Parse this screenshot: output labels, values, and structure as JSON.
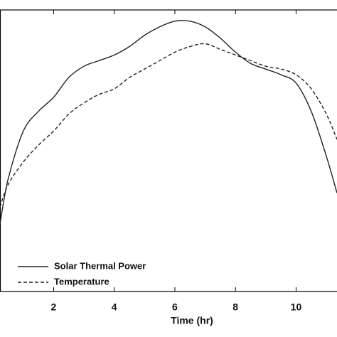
{
  "chart_data": {
    "type": "line",
    "xlabel": "Time (hr)",
    "x": [
      0.23,
      0.5,
      1,
      1.5,
      2,
      2.5,
      3,
      3.5,
      4,
      4.5,
      5,
      5.5,
      6,
      6.5,
      7,
      7.5,
      8,
      8.5,
      9,
      9.5,
      10,
      10.5,
      11,
      11.35
    ],
    "series": [
      {
        "name": "Solar Thermal Power",
        "color": "#222222",
        "dash": "solid",
        "values": [
          0.24,
          0.4,
          0.57,
          0.64,
          0.69,
          0.76,
          0.8,
          0.82,
          0.84,
          0.87,
          0.91,
          0.94,
          0.96,
          0.96,
          0.94,
          0.9,
          0.85,
          0.81,
          0.79,
          0.77,
          0.74,
          0.64,
          0.48,
          0.35
        ]
      },
      {
        "name": "Temperature",
        "color": "#222222",
        "dash": "dashed",
        "values": [
          0.3,
          0.38,
          0.46,
          0.52,
          0.57,
          0.63,
          0.67,
          0.7,
          0.72,
          0.76,
          0.79,
          0.82,
          0.85,
          0.87,
          0.88,
          0.86,
          0.84,
          0.82,
          0.8,
          0.79,
          0.77,
          0.72,
          0.63,
          0.54
        ]
      }
    ],
    "xlim": [
      0.23,
      11.35
    ],
    "xticks": [
      2,
      4,
      6,
      8,
      10
    ],
    "ylim": [
      0,
      1
    ],
    "legend": "lower left"
  }
}
